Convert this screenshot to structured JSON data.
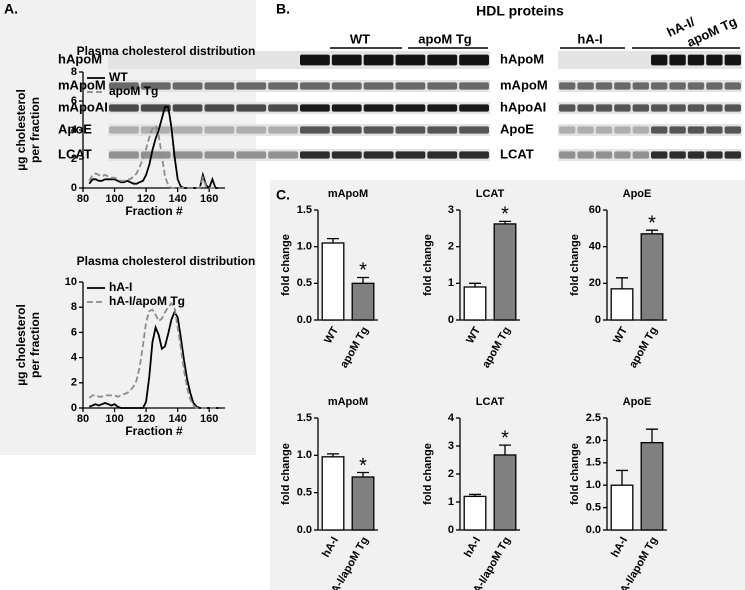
{
  "panels": {
    "a": "A.",
    "b": "B.",
    "c": "C."
  },
  "blots": {
    "title": "HDL proteins",
    "left": {
      "groups": [
        "WT",
        "apoM Tg"
      ],
      "rows": [
        "hApoM",
        "mApoM",
        "mApoAI",
        "ApoE",
        "LCAT"
      ]
    },
    "right": {
      "groups": [
        "hA-I",
        [
          "hA-I/",
          "apoM Tg"
        ]
      ],
      "rows": [
        "hApoM",
        "mApoM",
        "hApoAI",
        "ApoE",
        "LCAT"
      ]
    }
  },
  "chart_data": [
    {
      "type": "line",
      "title": "Plasma cholesterol distribution",
      "xlabel": "Fraction #",
      "ylabel": [
        "µg cholesterol",
        "per fraction"
      ],
      "xlim": [
        80,
        170
      ],
      "xticks": [
        80,
        100,
        120,
        140,
        160
      ],
      "ylim": [
        0,
        8
      ],
      "yticks": [
        0,
        2,
        4,
        6,
        8
      ],
      "legend": "upper left",
      "x": [
        84,
        86,
        88,
        90,
        92,
        94,
        96,
        98,
        100,
        102,
        104,
        106,
        108,
        110,
        112,
        114,
        116,
        118,
        120,
        122,
        124,
        126,
        128,
        130,
        132,
        134,
        136,
        138,
        140,
        142,
        144,
        146,
        148,
        150,
        152,
        154,
        156,
        158,
        160,
        162,
        164,
        166
      ],
      "series": [
        {
          "name": "WT",
          "color": "#000000",
          "dash": false,
          "values": [
            0.3,
            0.6,
            0.6,
            0.5,
            0.5,
            0.6,
            0.6,
            0.6,
            0.6,
            0.5,
            0.4,
            0.4,
            0.5,
            0.4,
            0.3,
            0.3,
            0.4,
            0.5,
            0.9,
            1.6,
            2.6,
            3.4,
            4.0,
            4.8,
            5.6,
            5.6,
            4.2,
            2.2,
            0.6,
            0.1,
            0,
            0,
            0,
            0,
            0,
            0,
            0.9,
            0.2,
            0,
            0.6,
            0,
            0
          ]
        },
        {
          "name": "apoM Tg",
          "color": "#8c8c8c",
          "dash": true,
          "values": [
            0.5,
            0.9,
            1.0,
            0.9,
            0.8,
            0.9,
            0.8,
            0.7,
            0.7,
            0.6,
            0.5,
            0.5,
            0.6,
            0.6,
            0.8,
            1.0,
            1.5,
            2.0,
            2.7,
            3.5,
            4.1,
            4.3,
            3.6,
            2.2,
            0.8,
            0.2,
            0,
            0,
            0,
            0,
            0,
            0,
            0,
            0,
            0,
            0,
            0.7,
            0.1,
            0,
            0,
            0,
            0
          ]
        }
      ]
    },
    {
      "type": "line",
      "title": "Plasma cholesterol distribution",
      "xlabel": "Fraction #",
      "ylabel": [
        "µg cholesterol",
        "per fraction"
      ],
      "xlim": [
        80,
        170
      ],
      "xticks": [
        80,
        100,
        120,
        140,
        160
      ],
      "ylim": [
        0,
        10
      ],
      "yticks": [
        0,
        2,
        4,
        6,
        8,
        10
      ],
      "legend": "upper left",
      "x": [
        84,
        86,
        88,
        90,
        92,
        94,
        96,
        98,
        100,
        102,
        104,
        106,
        108,
        110,
        112,
        114,
        116,
        118,
        120,
        122,
        124,
        126,
        128,
        130,
        132,
        134,
        136,
        138,
        140,
        142,
        144,
        146,
        148,
        150,
        152,
        154,
        156,
        158,
        160,
        162,
        164,
        166
      ],
      "series": [
        {
          "name": "hA-I",
          "color": "#000000",
          "dash": false,
          "values": [
            0.1,
            0.2,
            0.3,
            0.2,
            0.3,
            0.4,
            0.3,
            0.2,
            0.3,
            0.1,
            0,
            0,
            0,
            0,
            0,
            0,
            0,
            0,
            0.5,
            2.5,
            5.2,
            6.4,
            5.8,
            4.7,
            4.9,
            5.9,
            7.0,
            7.6,
            7.2,
            5.6,
            3.8,
            2.3,
            1.2,
            0.4,
            0.1,
            0,
            0,
            0,
            0,
            0,
            0,
            0
          ]
        },
        {
          "name": "hA-I/apoM Tg",
          "color": "#8c8c8c",
          "dash": true,
          "values": [
            0.8,
            1.0,
            1.0,
            0.9,
            0.9,
            1.0,
            1.0,
            1.0,
            1.0,
            0.9,
            1.0,
            1.1,
            1.2,
            1.4,
            1.7,
            2.2,
            3.3,
            5.0,
            6.8,
            7.7,
            7.8,
            7.4,
            6.9,
            7.1,
            7.6,
            8.0,
            8.3,
            8.0,
            6.4,
            4.8,
            3.0,
            1.6,
            0.7,
            0.2,
            0,
            0,
            0,
            0,
            0,
            0,
            0,
            0
          ]
        }
      ]
    },
    {
      "type": "bar",
      "title": "mApoM",
      "ylabel": "fold change",
      "categories": [
        "WT",
        "apoM Tg"
      ],
      "values": [
        1.05,
        0.5
      ],
      "errors": [
        0.06,
        0.08
      ],
      "colors": [
        "#ffffff",
        "#808080"
      ],
      "ylim": [
        0,
        1.5
      ],
      "yticks": [
        {
          "value": 0,
          "label": "0.0"
        },
        0.5,
        {
          "value": 1,
          "label": "1.0"
        },
        1.5
      ],
      "annotations": [
        null,
        "*"
      ]
    },
    {
      "type": "bar",
      "title": "LCAT",
      "ylabel": "fold change",
      "categories": [
        "WT",
        "apoM Tg"
      ],
      "values": [
        0.9,
        2.62
      ],
      "errors": [
        0.1,
        0.07
      ],
      "colors": [
        "#ffffff",
        "#808080"
      ],
      "ylim": [
        0,
        3
      ],
      "yticks": [
        0,
        1,
        2,
        3
      ],
      "annotations": [
        null,
        "*"
      ]
    },
    {
      "type": "bar",
      "title": "ApoE",
      "ylabel": "fold change",
      "categories": [
        "WT",
        "apoM Tg"
      ],
      "values": [
        17,
        47
      ],
      "errors": [
        6,
        2
      ],
      "colors": [
        "#ffffff",
        "#808080"
      ],
      "ylim": [
        0,
        60
      ],
      "yticks": [
        0,
        20,
        40,
        60
      ],
      "annotations": [
        null,
        "*"
      ]
    },
    {
      "type": "bar",
      "title": "mApoM",
      "ylabel": "fold change",
      "categories": [
        "hA-I",
        "hA-I/apoM Tg"
      ],
      "values": [
        0.98,
        0.71
      ],
      "errors": [
        0.04,
        0.06
      ],
      "colors": [
        "#ffffff",
        "#808080"
      ],
      "ylim": [
        0,
        1.5
      ],
      "yticks": [
        {
          "value": 0,
          "label": "0.0"
        },
        0.5,
        {
          "value": 1,
          "label": "1.0"
        },
        1.5
      ],
      "annotations": [
        null,
        "*"
      ]
    },
    {
      "type": "bar",
      "title": "LCAT",
      "ylabel": "fold change",
      "categories": [
        "hA-I",
        "hA-I/apoM Tg"
      ],
      "values": [
        1.2,
        2.68
      ],
      "errors": [
        0.07,
        0.35
      ],
      "colors": [
        "#ffffff",
        "#808080"
      ],
      "ylim": [
        0,
        4
      ],
      "yticks": [
        0,
        1,
        2,
        3,
        4
      ],
      "annotations": [
        null,
        "*"
      ]
    },
    {
      "type": "bar",
      "title": "ApoE",
      "ylabel": "fold change",
      "categories": [
        "hA-I",
        "hA-I/apoM Tg"
      ],
      "values": [
        1.0,
        1.95
      ],
      "errors": [
        0.33,
        0.3
      ],
      "colors": [
        "#ffffff",
        "#808080"
      ],
      "ylim": [
        0,
        2.5
      ],
      "yticks": [
        {
          "value": 0,
          "label": "0.0"
        },
        0.5,
        {
          "value": 1,
          "label": "1.0"
        },
        1.5,
        {
          "value": 2,
          "label": "2.0"
        },
        2.5
      ],
      "annotations": [
        null,
        null
      ]
    }
  ]
}
